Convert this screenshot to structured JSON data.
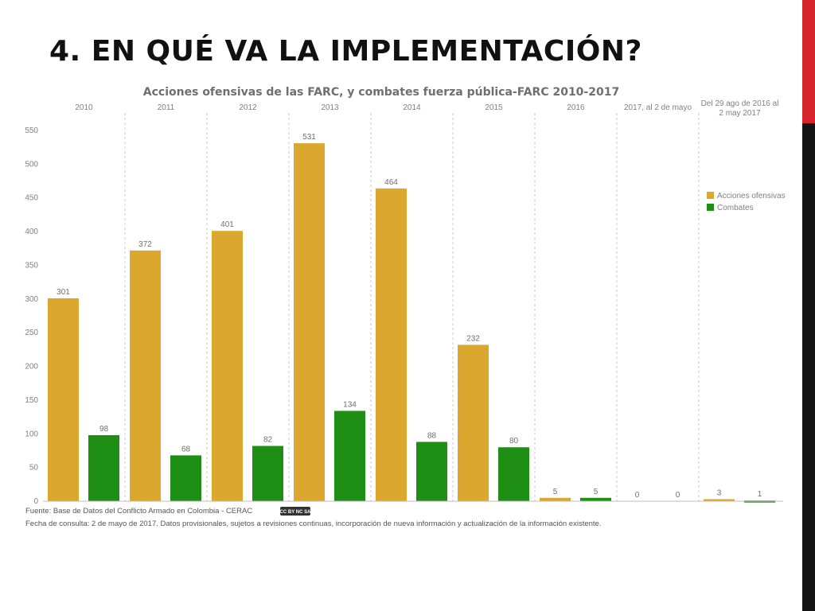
{
  "slide": {
    "title": "4. EN QUÉ VA LA IMPLEMENTACIÓN?",
    "accent_top_color": "#d7262d",
    "accent_bottom_color": "#141414"
  },
  "chart_data": {
    "type": "bar",
    "title": "Acciones ofensivas de las FARC, y combates fuerza pública-FARC 2010-2017",
    "categories": [
      "2010",
      "2011",
      "2012",
      "2013",
      "2014",
      "2015",
      "2016",
      "2017, al 2 de mayo",
      "Del 29 ago de 2016 al 2 may 2017"
    ],
    "category_lines": [
      [
        "2010"
      ],
      [
        "2011"
      ],
      [
        "2012"
      ],
      [
        "2013"
      ],
      [
        "2014"
      ],
      [
        "2015"
      ],
      [
        "2016"
      ],
      [
        "2017, al 2 de mayo"
      ],
      [
        "Del 29 ago de 2016 al",
        "2 may  2017"
      ]
    ],
    "series": [
      {
        "name": "Acciones ofensivas",
        "color": "#dba72e",
        "values": [
          301,
          372,
          401,
          531,
          464,
          232,
          5,
          0,
          3
        ]
      },
      {
        "name": "Combates",
        "color": "#1e8f14",
        "values": [
          98,
          68,
          82,
          134,
          88,
          80,
          5,
          0,
          1
        ]
      }
    ],
    "ylim": [
      0,
      550
    ],
    "yticks": [
      0,
      50,
      100,
      150,
      200,
      250,
      300,
      350,
      400,
      450,
      500,
      550
    ],
    "xlabel": "",
    "ylabel": "",
    "legend_position": "right",
    "grid": false,
    "column_separators": true,
    "source": "Fuente: Base de Datos del Conflicto Armado en Colombia - CERAC",
    "license_badge": "CC BY NC SA",
    "consult_note": "Fecha de consulta: 2 de mayo de 2017. Datos provisionales, sujetos a revisiones continuas, incorporación de nueva información y actualización de la información existente."
  }
}
